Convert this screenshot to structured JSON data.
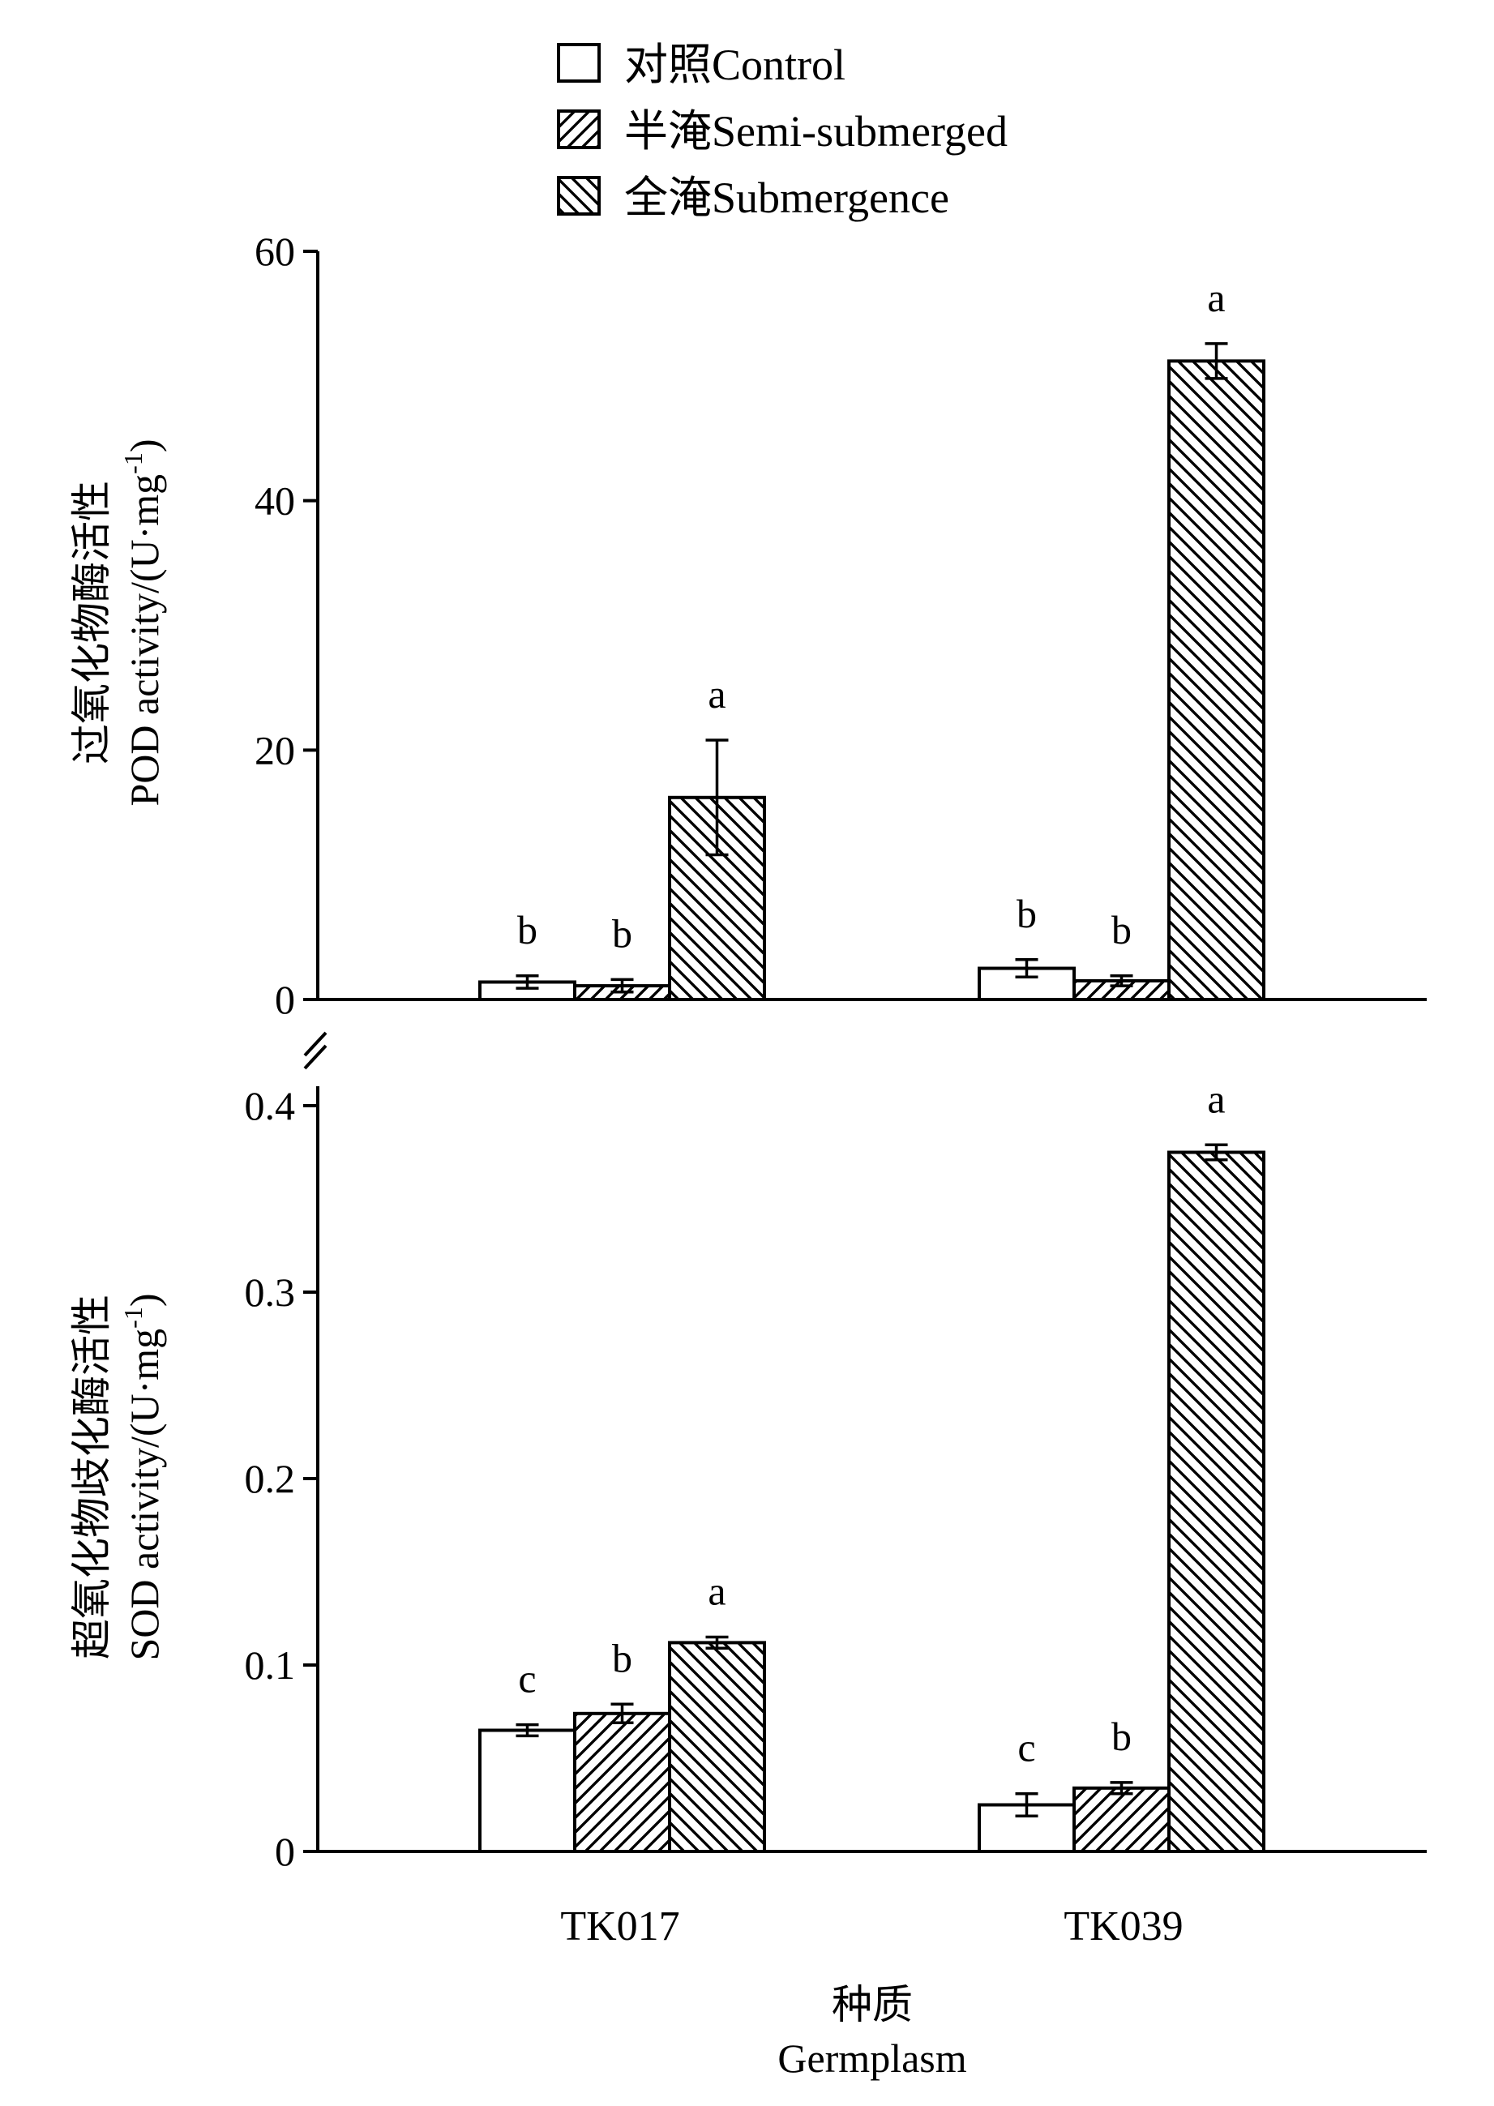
{
  "legend": [
    {
      "label": "对照Control",
      "pattern": "none"
    },
    {
      "label": "半淹Semi-submerged",
      "pattern": "hatch-right"
    },
    {
      "label": "全淹Submergence",
      "pattern": "hatch-left"
    }
  ],
  "x_axis": {
    "title_cn": "种质",
    "title_en": "Germplasm"
  },
  "chart_data": [
    {
      "type": "bar",
      "panel": "top",
      "ylabel_cn": "过氧化物酶活性",
      "ylabel_en": "POD activity/(U·mg",
      "ylabel_sup": "-1",
      "ylabel_close": ")",
      "ylim": [
        0,
        60
      ],
      "yticks": [
        {
          "value": 0,
          "label": "0"
        },
        {
          "value": 20,
          "label": "20"
        },
        {
          "value": 40,
          "label": "40"
        },
        {
          "value": 60,
          "label": "60"
        }
      ],
      "categories": [
        "TK017",
        "TK039"
      ],
      "series": [
        {
          "name": "对照Control",
          "values": [
            1.4,
            2.5
          ],
          "errors": [
            0.5,
            0.7
          ],
          "labels": [
            "b",
            "b"
          ]
        },
        {
          "name": "半淹Semi-submerged",
          "values": [
            1.1,
            1.5
          ],
          "errors": [
            0.5,
            0.4
          ],
          "labels": [
            "b",
            "b"
          ]
        },
        {
          "name": "全淹Submergence",
          "values": [
            16.2,
            51.2
          ],
          "errors": [
            4.6,
            1.4
          ],
          "labels": [
            "a",
            "a"
          ]
        }
      ]
    },
    {
      "type": "bar",
      "panel": "bottom",
      "ylabel_cn": "超氧化物歧化酶活性",
      "ylabel_en": "SOD activity/(U·mg",
      "ylabel_sup": "-1",
      "ylabel_close": ")",
      "ylim": [
        0,
        0.4
      ],
      "yticks": [
        {
          "value": 0,
          "label": "0"
        },
        {
          "value": 0.1,
          "label": "0.1"
        },
        {
          "value": 0.2,
          "label": "0.2"
        },
        {
          "value": 0.3,
          "label": "0.3"
        },
        {
          "value": 0.4,
          "label": "0.4"
        }
      ],
      "categories": [
        "TK017",
        "TK039"
      ],
      "series": [
        {
          "name": "对照Control",
          "values": [
            0.065,
            0.025
          ],
          "errors": [
            0.003,
            0.006
          ],
          "labels": [
            "c",
            "c"
          ]
        },
        {
          "name": "半淹Semi-submerged",
          "values": [
            0.074,
            0.034
          ],
          "errors": [
            0.005,
            0.003
          ],
          "labels": [
            "b",
            "b"
          ]
        },
        {
          "name": "全淹Submergence",
          "values": [
            0.112,
            0.375
          ],
          "errors": [
            0.003,
            0.004
          ],
          "labels": [
            "a",
            "a"
          ]
        }
      ]
    }
  ]
}
